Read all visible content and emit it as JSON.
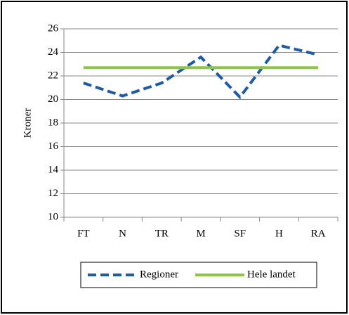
{
  "chart_data": {
    "type": "line",
    "y_label": "Kroner",
    "categories": [
      "FT",
      "N",
      "TR",
      "M",
      "SF",
      "H",
      "RA"
    ],
    "series": [
      {
        "name": "Regioner",
        "color": "#1f5aa6",
        "dashed": true,
        "values": [
          21.4,
          20.3,
          21.4,
          23.6,
          20.2,
          24.6,
          23.8
        ]
      },
      {
        "name": "Hele landet",
        "color": "#8dc63f",
        "dashed": false,
        "values": [
          22.7,
          22.7,
          22.7,
          22.7,
          22.7,
          22.7,
          22.7
        ]
      }
    ],
    "ylim": [
      10,
      26
    ],
    "yticks": [
      10,
      12,
      14,
      16,
      18,
      20,
      22,
      24,
      26
    ],
    "grid": true,
    "legend": "bottom"
  }
}
